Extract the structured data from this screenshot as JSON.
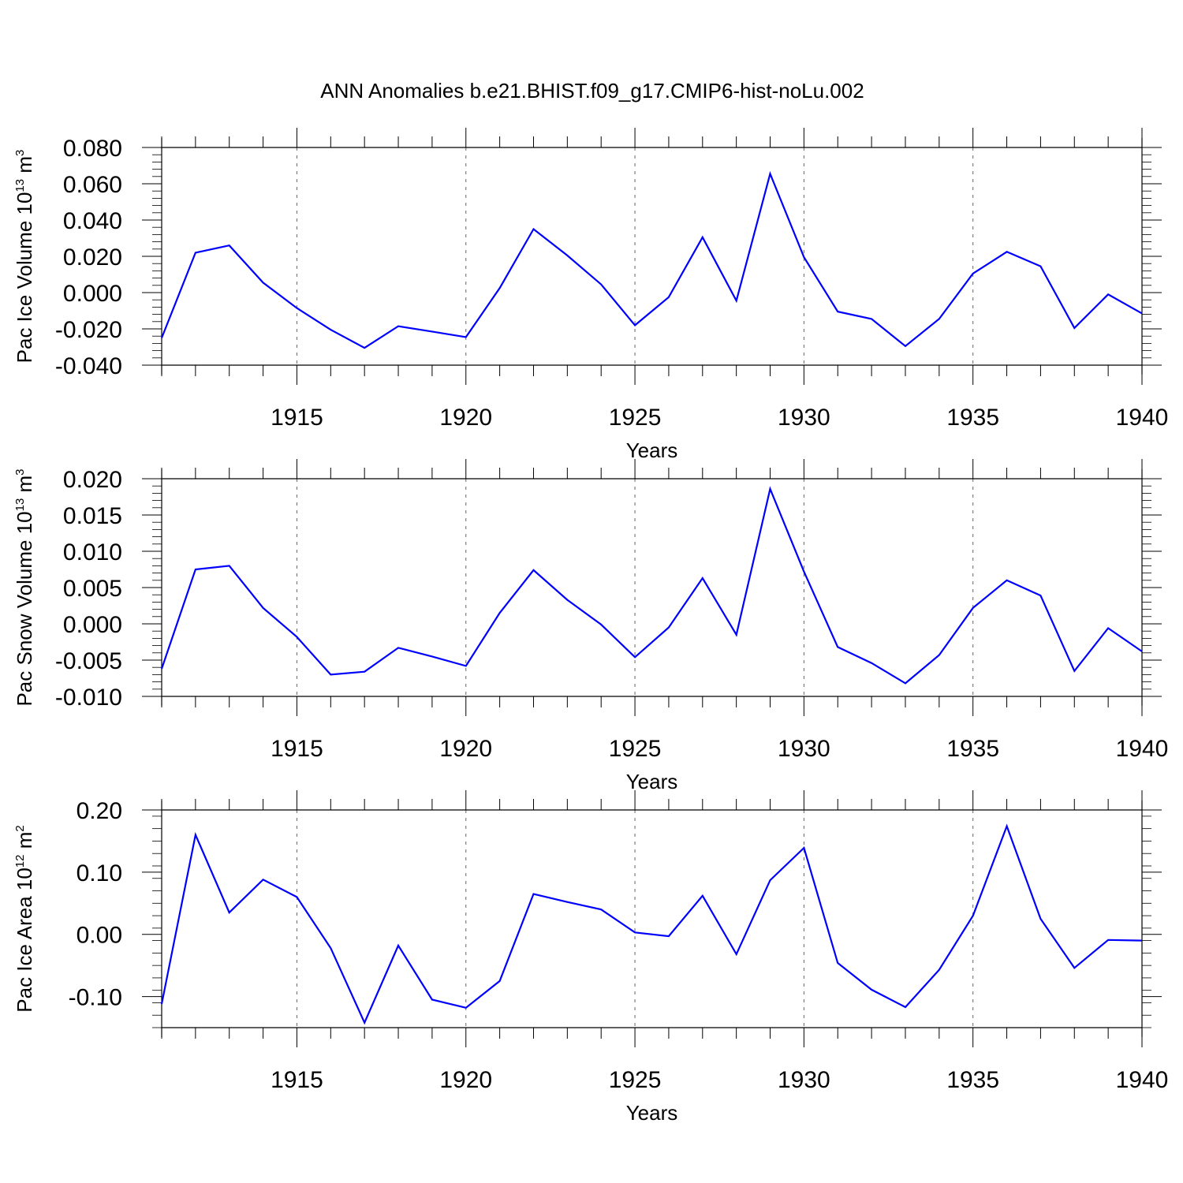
{
  "title": "ANN Anomalies b.e21.BHIST.f09_g17.CMIP6-hist-noLu.002",
  "colors": {
    "line": "#0000ff",
    "axis": "#000000",
    "grid": "#666666"
  },
  "chart_data": [
    {
      "type": "line",
      "title": "ANN Anomalies b.e21.BHIST.f09_g17.CMIP6-hist-noLu.002",
      "xlabel": "Years",
      "ylabel": {
        "text": "Pac Ice Volume 10",
        "exp": "13",
        "unit": " m",
        "unit_exp": "3"
      },
      "xlim": [
        1911,
        1940
      ],
      "ylim": [
        -0.04,
        0.08
      ],
      "xticks": [
        "1915",
        "1920",
        "1925",
        "1930",
        "1935",
        "1940"
      ],
      "yticks": [
        "0.080",
        "0.060",
        "0.040",
        "0.020",
        "0.000",
        "-0.020",
        "-0.040"
      ],
      "grid": "vertical dashed at major x ticks",
      "x": [
        1911,
        1912,
        1913,
        1914,
        1915,
        1916,
        1917,
        1918,
        1919,
        1920,
        1921,
        1922,
        1923,
        1924,
        1925,
        1926,
        1927,
        1928,
        1929,
        1930,
        1931,
        1932,
        1933,
        1934,
        1935,
        1936,
        1937,
        1938,
        1939,
        1940
      ],
      "series": [
        {
          "values": [
            -0.025,
            0.022,
            0.026,
            0.0055,
            -0.0085,
            -0.0205,
            -0.0305,
            -0.0185,
            -0.0215,
            -0.0245,
            0.0025,
            0.035,
            0.0205,
            0.0045,
            -0.018,
            -0.0025,
            0.0305,
            -0.0045,
            0.0655,
            0.0195,
            -0.0105,
            -0.0145,
            -0.0295,
            -0.0145,
            0.0105,
            0.0225,
            0.0145,
            -0.0195,
            -0.001,
            -0.0115
          ]
        }
      ]
    },
    {
      "type": "line",
      "xlabel": "Years",
      "ylabel": {
        "text": "Pac Snow Volume 10",
        "exp": "13",
        "unit": " m",
        "unit_exp": "3"
      },
      "xlim": [
        1911,
        1940
      ],
      "ylim": [
        -0.01,
        0.02
      ],
      "xticks": [
        "1915",
        "1920",
        "1925",
        "1930",
        "1935",
        "1940"
      ],
      "yticks": [
        "0.020",
        "0.015",
        "0.010",
        "0.005",
        "0.000",
        "-0.005",
        "-0.010"
      ],
      "grid": "vertical dashed at major x ticks",
      "x": [
        1911,
        1912,
        1913,
        1914,
        1915,
        1916,
        1917,
        1918,
        1919,
        1920,
        1921,
        1922,
        1923,
        1924,
        1925,
        1926,
        1927,
        1928,
        1929,
        1930,
        1931,
        1932,
        1933,
        1934,
        1935,
        1936,
        1937,
        1938,
        1939,
        1940
      ],
      "series": [
        {
          "values": [
            -0.0062,
            0.0075,
            0.008,
            0.0022,
            -0.0018,
            -0.007,
            -0.0066,
            -0.0033,
            -0.0045,
            -0.0058,
            0.0015,
            0.0074,
            0.0033,
            -0.0001,
            -0.0046,
            -0.0005,
            0.0063,
            -0.0015,
            0.0186,
            0.0072,
            -0.0032,
            -0.0054,
            -0.0082,
            -0.0043,
            0.0022,
            0.006,
            0.0039,
            -0.0065,
            -0.0006,
            -0.0038
          ]
        }
      ]
    },
    {
      "type": "line",
      "xlabel": "Years",
      "ylabel": {
        "text": "Pac Ice Area 10",
        "exp": "12",
        "unit": " m",
        "unit_exp": "2"
      },
      "xlim": [
        1911,
        1940
      ],
      "ylim": [
        -0.15,
        0.2
      ],
      "xticks": [
        "1915",
        "1920",
        "1925",
        "1930",
        "1935",
        "1940"
      ],
      "yticks": [
        "0.20",
        "0.10",
        "0.00",
        "-0.10"
      ],
      "grid": "vertical dashed at major x ticks",
      "x": [
        1911,
        1912,
        1913,
        1914,
        1915,
        1916,
        1917,
        1918,
        1919,
        1920,
        1921,
        1922,
        1923,
        1924,
        1925,
        1926,
        1927,
        1928,
        1929,
        1930,
        1931,
        1932,
        1933,
        1934,
        1935,
        1936,
        1937,
        1938,
        1939,
        1940
      ],
      "series": [
        {
          "values": [
            -0.112,
            0.16,
            0.035,
            0.088,
            0.06,
            -0.022,
            -0.142,
            -0.018,
            -0.105,
            -0.118,
            -0.075,
            0.065,
            0.052,
            0.04,
            0.003,
            -0.003,
            0.062,
            -0.032,
            0.087,
            0.139,
            -0.046,
            -0.089,
            -0.117,
            -0.057,
            0.03,
            0.174,
            0.025,
            -0.054,
            -0.009,
            -0.01
          ]
        }
      ]
    }
  ]
}
